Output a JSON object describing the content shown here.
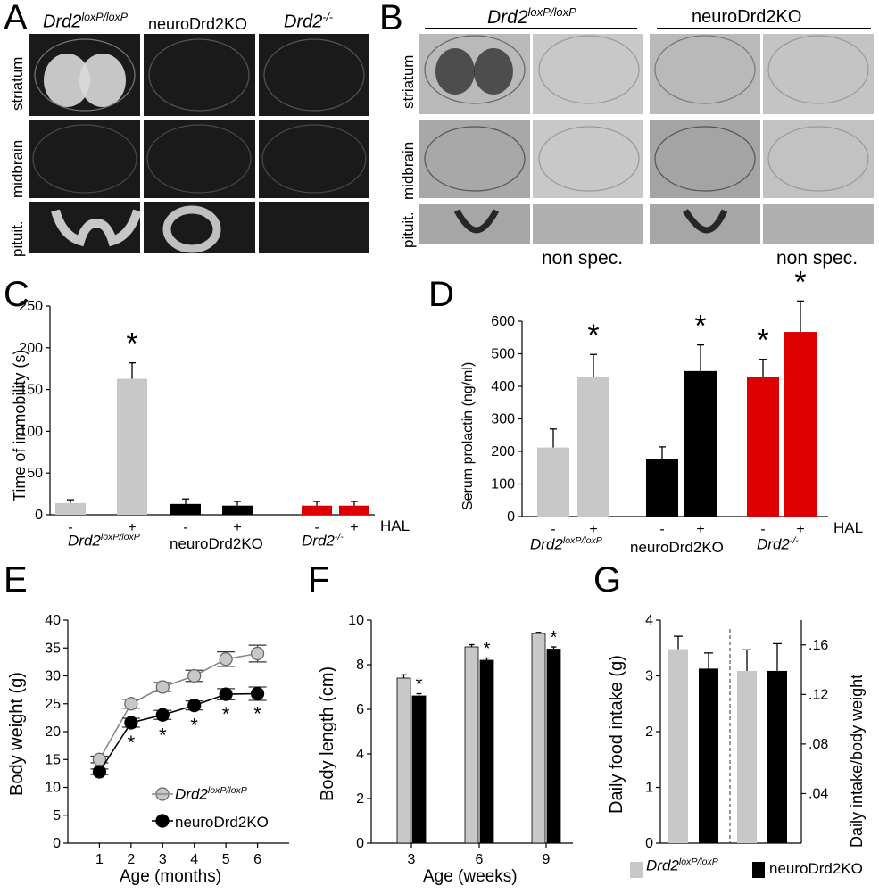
{
  "panel_letters": [
    "A",
    "B",
    "C",
    "D",
    "E",
    "F",
    "G"
  ],
  "panelA": {
    "genotypes": [
      "Drd2",
      "neuroDrd2KO",
      "Drd2"
    ],
    "genotype_sups": [
      "loxP/loxP",
      "",
      "-/-"
    ],
    "regions": [
      "striatum",
      "midbrain",
      "pituit."
    ]
  },
  "panelB": {
    "genotypes": [
      "Drd2",
      "neuroDrd2KO"
    ],
    "genotype_sups": [
      "loxP/loxP",
      ""
    ],
    "regions": [
      "striatum",
      "midbrain",
      "pituit."
    ],
    "footer": [
      "non spec.",
      "non spec."
    ]
  },
  "chart_data": [
    {
      "panel": "C",
      "type": "bar",
      "ylabel": "Time of immobility (s)",
      "ylim": [
        0,
        250
      ],
      "yticks": [
        0,
        50,
        100,
        150,
        200,
        250
      ],
      "groups": [
        "Drd2",
        "neuroDrd2KO",
        "Drd2"
      ],
      "group_sups": [
        "loxP/loxP",
        "",
        "-/-"
      ],
      "treatments": [
        "-",
        "+"
      ],
      "treatment_label": "HAL",
      "values": [
        [
          14,
          163
        ],
        [
          13,
          11
        ],
        [
          11,
          11
        ]
      ],
      "errors": [
        [
          4,
          19
        ],
        [
          6,
          5
        ],
        [
          5,
          5
        ]
      ],
      "colors": [
        [
          "#c8c8c8",
          "#c8c8c8"
        ],
        [
          "#000000",
          "#000000"
        ],
        [
          "#dd0000",
          "#dd0000"
        ]
      ],
      "significance": [
        [
          false,
          true
        ],
        [
          false,
          false
        ],
        [
          false,
          false
        ]
      ],
      "sig_marker": "*"
    },
    {
      "panel": "D",
      "type": "bar",
      "ylabel": "Serum prolactin (ng/ml)",
      "ylim": [
        0,
        600
      ],
      "yticks": [
        0,
        100,
        200,
        300,
        400,
        500,
        600
      ],
      "groups": [
        "Drd2",
        "neuroDrd2KO",
        "Drd2"
      ],
      "group_sups": [
        "loxP/loxP",
        "",
        "-/-"
      ],
      "treatments": [
        "-",
        "+"
      ],
      "treatment_label": "HAL",
      "values": [
        [
          212,
          428
        ],
        [
          176,
          447
        ],
        [
          428,
          567
        ]
      ],
      "errors": [
        [
          57,
          70
        ],
        [
          38,
          80
        ],
        [
          55,
          95
        ]
      ],
      "colors": [
        [
          "#c8c8c8",
          "#c8c8c8"
        ],
        [
          "#000000",
          "#000000"
        ],
        [
          "#dd0000",
          "#dd0000"
        ]
      ],
      "significance": [
        [
          false,
          true
        ],
        [
          false,
          true
        ],
        [
          true,
          true
        ]
      ],
      "sig_marker": "*"
    },
    {
      "panel": "E",
      "type": "line",
      "xlabel": "Age (months)",
      "ylabel": "Body weight (g)",
      "x": [
        1,
        2,
        3,
        4,
        5,
        6
      ],
      "xlim": [
        0,
        7
      ],
      "ylim": [
        0,
        40
      ],
      "yticks": [
        0,
        5,
        10,
        15,
        20,
        25,
        30,
        35,
        40
      ],
      "series": [
        {
          "name": "Drd2",
          "name_sup": "loxP/loxP",
          "values": [
            15,
            25,
            28,
            30,
            33,
            34
          ],
          "errors": [
            0.6,
            0.8,
            0.8,
            1.0,
            1.3,
            1.5
          ],
          "color": "#c8c8c8"
        },
        {
          "name": "neuroDrd2KO",
          "values": [
            12.8,
            21.6,
            23,
            24.7,
            26.7,
            26.8
          ],
          "errors": [
            0.5,
            0.8,
            0.8,
            0.8,
            1.0,
            1.2
          ],
          "color": "#000000"
        }
      ],
      "significant_x": [
        2,
        3,
        4,
        5,
        6
      ],
      "sig_marker": "*",
      "legend": "bottom-right"
    },
    {
      "panel": "F",
      "type": "bar",
      "xlabel": "Age (weeks)",
      "ylabel": "Body length (cm)",
      "categories": [
        "3",
        "6",
        "9"
      ],
      "ylim": [
        0,
        10
      ],
      "yticks": [
        0,
        2,
        4,
        6,
        8,
        10
      ],
      "series": [
        {
          "values": [
            7.4,
            8.8,
            9.4
          ],
          "errors": [
            0.15,
            0.1,
            0.05
          ],
          "color": "#c8c8c8"
        },
        {
          "values": [
            6.6,
            8.2,
            8.7
          ],
          "errors": [
            0.1,
            0.1,
            0.1
          ],
          "color": "#000000"
        }
      ],
      "significance": [
        true,
        true,
        true
      ],
      "sig_marker": "*"
    },
    {
      "panel": "G",
      "type": "bar",
      "ylabel": "Daily food intake (g)",
      "ylabel_right": "Daily intake/body weight",
      "ylim": [
        0,
        4
      ],
      "yticks": [
        0,
        1,
        2,
        3,
        4
      ],
      "ylim_right": [
        0,
        0.18
      ],
      "yticks_right": [
        ".04",
        ".08",
        ".12",
        ".16"
      ],
      "left_values": [
        3.48,
        3.13
      ],
      "left_errors": [
        0.23,
        0.28
      ],
      "right_values": [
        0.139,
        0.139
      ],
      "right_errors": [
        0.017,
        0.022
      ],
      "colors": [
        "#c8c8c8",
        "#000000"
      ],
      "legend": [
        {
          "name": "Drd2",
          "name_sup": "loxP/loxP",
          "color": "#c8c8c8"
        },
        {
          "name": "neuroDrd2KO",
          "color": "#000000"
        }
      ]
    }
  ]
}
